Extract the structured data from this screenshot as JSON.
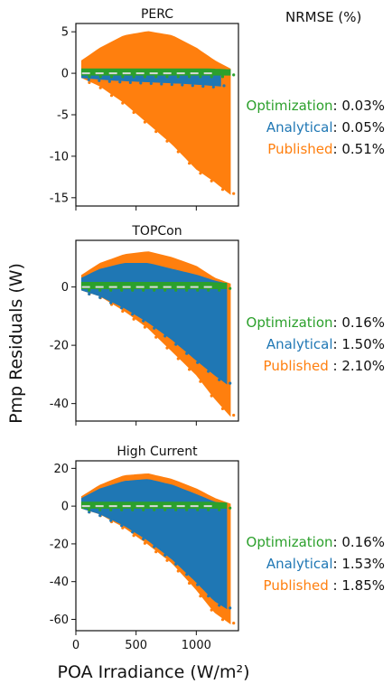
{
  "figure": {
    "xlabel": "POA Irradiance (W/m²)",
    "ylabel": "Pmp Residuals (W)",
    "nrmse_header": "NRMSE (%)",
    "colors": {
      "Optimization": "#2ca02c",
      "Analytical": "#1f77b4",
      "Published": "#ff7f0e",
      "zero_line": "#d9d9d9"
    }
  },
  "chart_data": [
    {
      "type": "scatter",
      "title": "PERC",
      "xlim": [
        0,
        1350
      ],
      "ylim": [
        -16,
        6
      ],
      "x_ticks": [
        0,
        500,
        1000
      ],
      "y_ticks": [
        5,
        0,
        -5,
        -10,
        -15
      ],
      "draw_order": [
        "Published",
        "Analytical",
        "Optimization"
      ],
      "series": [
        {
          "name": "Optimization",
          "envelope": {
            "x": [
              50,
              300,
              600,
              900,
              1100,
              1280
            ],
            "upper": [
              0.5,
              0.5,
              0.5,
              0.5,
              0.5,
              0.4
            ],
            "lower": [
              -0.2,
              -0.2,
              -0.2,
              -0.2,
              -0.2,
              -0.2
            ]
          }
        },
        {
          "name": "Analytical",
          "envelope": {
            "x": [
              50,
              300,
              600,
              900,
              1100,
              1200
            ],
            "upper": [
              0.3,
              0.3,
              0.3,
              0.3,
              0.3,
              0.3
            ],
            "lower": [
              -0.5,
              -0.8,
              -1.0,
              -1.2,
              -1.4,
              -1.5
            ]
          }
        },
        {
          "name": "Published",
          "envelope": {
            "x": [
              50,
              200,
              400,
              600,
              800,
              1000,
              1150,
              1280
            ],
            "upper": [
              1.5,
              3.0,
              4.5,
              5.0,
              4.5,
              3.0,
              1.5,
              0.5
            ],
            "lower": [
              -0.5,
              -1.5,
              -3.5,
              -6,
              -8.5,
              -11.5,
              -13,
              -14.5
            ]
          }
        }
      ],
      "legend": [
        {
          "name": "Optimization",
          "value": "0.03%"
        },
        {
          "name": "Analytical",
          "value": "0.05%"
        },
        {
          "name": "Published",
          "value": "0.51%"
        }
      ]
    },
    {
      "type": "scatter",
      "title": "TOPCon",
      "xlim": [
        0,
        1350
      ],
      "ylim": [
        -46,
        16
      ],
      "x_ticks": [
        0,
        500,
        1000
      ],
      "y_ticks": [
        0,
        -20,
        -40
      ],
      "draw_order": [
        "Published",
        "Analytical",
        "Optimization"
      ],
      "series": [
        {
          "name": "Optimization",
          "envelope": {
            "x": [
              50,
              300,
              600,
              900,
              1100,
              1250
            ],
            "upper": [
              1.5,
              1.5,
              1.5,
              1.5,
              1.5,
              1.2
            ],
            "lower": [
              -0.5,
              -0.5,
              -0.5,
              -0.5,
              -0.5,
              -0.5
            ]
          }
        },
        {
          "name": "Analytical",
          "envelope": {
            "x": [
              50,
              200,
              400,
              600,
              800,
              1000,
              1150,
              1250
            ],
            "upper": [
              3,
              6,
              8,
              8,
              6,
              4,
              2,
              1
            ],
            "lower": [
              -1,
              -3,
              -7,
              -12,
              -18,
              -25,
              -30,
              -33
            ]
          }
        },
        {
          "name": "Published",
          "envelope": {
            "x": [
              50,
              200,
              400,
              600,
              800,
              1000,
              1150,
              1280
            ],
            "upper": [
              4,
              8,
              11,
              12,
              10,
              7,
              3,
              1
            ],
            "lower": [
              -1,
              -3,
              -8,
              -14,
              -22,
              -30,
              -38,
              -44
            ]
          }
        }
      ],
      "legend": [
        {
          "name": "Optimization",
          "value": "0.16%"
        },
        {
          "name": "Analytical",
          "value": "1.50%"
        },
        {
          "name": "Published",
          "value": "2.10%"
        }
      ]
    },
    {
      "type": "scatter",
      "title": "High Current",
      "xlim": [
        0,
        1350
      ],
      "ylim": [
        -66,
        24
      ],
      "x_ticks": [
        0,
        500,
        1000
      ],
      "x_tick_labels": [
        "0",
        "500",
        "1000"
      ],
      "y_ticks": [
        20,
        0,
        -20,
        -40,
        -60
      ],
      "draw_order": [
        "Published",
        "Analytical",
        "Optimization"
      ],
      "series": [
        {
          "name": "Optimization",
          "envelope": {
            "x": [
              50,
              300,
              600,
              900,
              1100,
              1250
            ],
            "upper": [
              2,
              2,
              2,
              2,
              2,
              1.5
            ],
            "lower": [
              -1,
              -1,
              -1,
              -1,
              -1,
              -1
            ]
          }
        },
        {
          "name": "Analytical",
          "envelope": {
            "x": [
              50,
              200,
              400,
              600,
              800,
              1000,
              1150,
              1250
            ],
            "upper": [
              4,
              9,
              13,
              14,
              11,
              6,
              2,
              1
            ],
            "lower": [
              -1,
              -4,
              -10,
              -18,
              -28,
              -40,
              -50,
              -54
            ]
          }
        },
        {
          "name": "Published",
          "envelope": {
            "x": [
              50,
              200,
              400,
              600,
              800,
              1000,
              1150,
              1280
            ],
            "upper": [
              5,
              11,
              16,
              17,
              14,
              9,
              4,
              1
            ],
            "lower": [
              -1,
              -4,
              -11,
              -20,
              -30,
              -44,
              -56,
              -62
            ]
          }
        }
      ],
      "legend": [
        {
          "name": "Optimization",
          "value": "0.16%"
        },
        {
          "name": "Analytical",
          "value": "1.53%"
        },
        {
          "name": "Published",
          "value": "1.85%"
        }
      ]
    }
  ]
}
